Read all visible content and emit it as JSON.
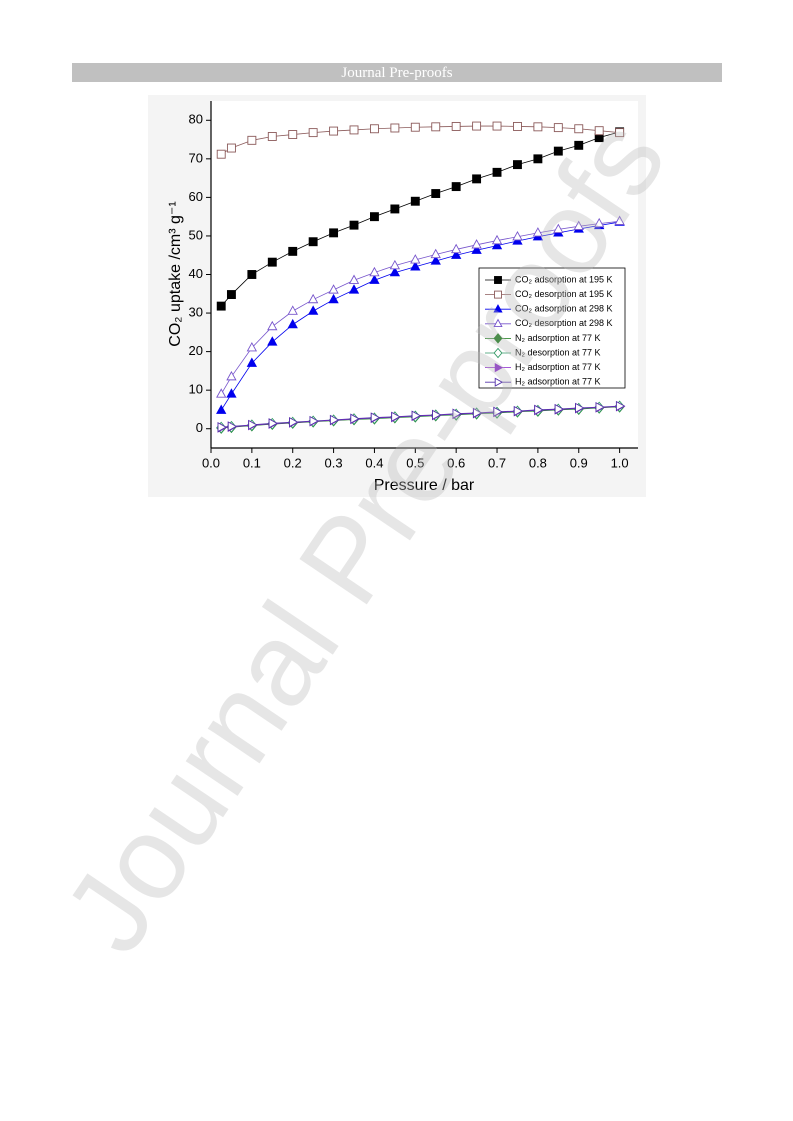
{
  "header": {
    "title": "Journal Pre-proofs"
  },
  "watermark": "Journal Pre-proofs",
  "chart_data": {
    "type": "line",
    "x_label": "Pressure / bar",
    "y_label": "CO₂ uptake /cm³ g⁻¹",
    "x": [
      0.025,
      0.05,
      0.1,
      0.15,
      0.2,
      0.25,
      0.3,
      0.35,
      0.4,
      0.45,
      0.5,
      0.55,
      0.6,
      0.65,
      0.7,
      0.75,
      0.8,
      0.85,
      0.9,
      0.95,
      1.0
    ],
    "xlim": [
      0,
      1.045
    ],
    "ylim": [
      -5,
      85
    ],
    "xticks": [
      {
        "value": 0,
        "label": "0.0"
      },
      {
        "value": 0.1,
        "label": "0.1"
      },
      {
        "value": 0.2,
        "label": "0.2"
      },
      {
        "value": 0.3,
        "label": "0.3"
      },
      {
        "value": 0.4,
        "label": "0.4"
      },
      {
        "value": 0.5,
        "label": "0.5"
      },
      {
        "value": 0.6,
        "label": "0.6"
      },
      {
        "value": 0.7,
        "label": "0.7"
      },
      {
        "value": 0.8,
        "label": "0.8"
      },
      {
        "value": 0.9,
        "label": "0.9"
      },
      {
        "value": 1.0,
        "label": "1.0"
      }
    ],
    "yticks": [
      0,
      10,
      20,
      30,
      40,
      50,
      60,
      70,
      80
    ],
    "legend": "right",
    "series": [
      {
        "name": "CO₂ adsorption at 195 K",
        "color": "#000000",
        "marker": "square",
        "filled": true,
        "values": [
          31.8,
          34.8,
          40,
          43.2,
          46,
          48.5,
          50.8,
          52.8,
          55,
          57,
          59,
          61,
          62.8,
          64.8,
          66.5,
          68.5,
          70,
          72,
          73.5,
          75.5,
          77
        ]
      },
      {
        "name": "CO₂ desorption at 195 K",
        "color": "#8b5a5a",
        "marker": "square",
        "filled": false,
        "values": [
          71.2,
          72.8,
          74.8,
          75.8,
          76.3,
          76.8,
          77.2,
          77.5,
          77.8,
          78,
          78.2,
          78.3,
          78.4,
          78.5,
          78.5,
          78.4,
          78.3,
          78.1,
          77.8,
          77.3,
          76.8
        ]
      },
      {
        "name": "CO₂ adsorption at 298 K",
        "color": "#0000ee",
        "marker": "triangle",
        "filled": true,
        "values": [
          4.8,
          9,
          17,
          22.5,
          27,
          30.5,
          33.5,
          36,
          38.5,
          40.5,
          42,
          43.5,
          45,
          46.3,
          47.5,
          48.7,
          49.8,
          50.8,
          51.8,
          52.7,
          53.6
        ]
      },
      {
        "name": "CO₂ desorption at 298 K",
        "color": "#7755cc",
        "marker": "triangle",
        "filled": false,
        "values": [
          9,
          13.5,
          21,
          26.5,
          30.5,
          33.5,
          36,
          38.5,
          40.5,
          42.3,
          43.8,
          45.2,
          46.5,
          47.7,
          48.8,
          49.8,
          50.8,
          51.7,
          52.5,
          53.2,
          53.8
        ]
      },
      {
        "name": "N₂ adsorption at 77 K",
        "color": "#117711",
        "marker": "diamond",
        "filled": true,
        "values": [
          0.2,
          0.4,
          0.8,
          1.2,
          1.5,
          1.8,
          2.1,
          2.4,
          2.6,
          2.9,
          3.1,
          3.4,
          3.6,
          3.9,
          4.1,
          4.4,
          4.6,
          4.9,
          5.1,
          5.4,
          5.7
        ]
      },
      {
        "name": "N₂ desorption at 77 K",
        "color": "#339966",
        "marker": "diamond",
        "filled": false,
        "values": [
          0.3,
          0.5,
          0.9,
          1.3,
          1.6,
          1.9,
          2.2,
          2.5,
          2.7,
          3.0,
          3.2,
          3.5,
          3.7,
          4.0,
          4.2,
          4.5,
          4.7,
          5.0,
          5.2,
          5.5,
          5.8
        ]
      },
      {
        "name": "H₂ adsorption at 77 K",
        "color": "#8822cc",
        "marker": "triangle-right",
        "filled": true,
        "values": [
          0.3,
          0.5,
          0.9,
          1.3,
          1.6,
          1.9,
          2.2,
          2.5,
          2.8,
          3.0,
          3.3,
          3.5,
          3.8,
          4.0,
          4.3,
          4.5,
          4.8,
          5.0,
          5.3,
          5.5,
          5.8
        ]
      },
      {
        "name": "H₂ adsorption at 77 K",
        "color": "#5533aa",
        "marker": "triangle-right",
        "filled": false,
        "values": [
          0.4,
          0.6,
          1.0,
          1.4,
          1.7,
          2.0,
          2.3,
          2.6,
          2.9,
          3.1,
          3.4,
          3.6,
          3.9,
          4.1,
          4.4,
          4.6,
          4.9,
          5.1,
          5.4,
          5.6,
          5.9
        ]
      }
    ]
  }
}
